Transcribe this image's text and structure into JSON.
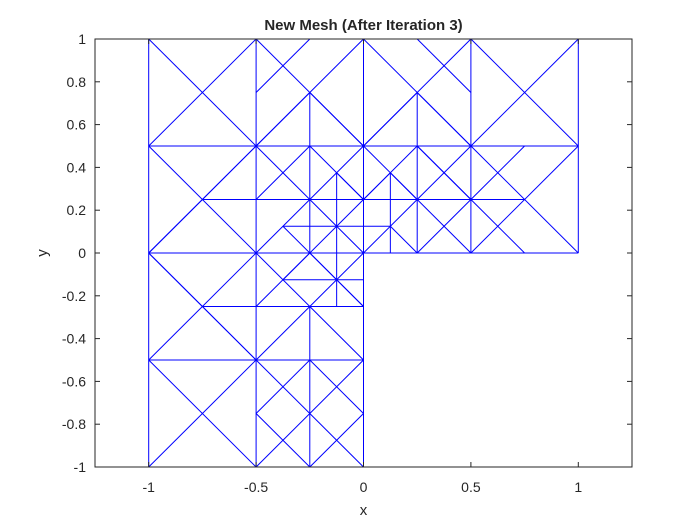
{
  "chart_data": {
    "type": "line",
    "title": "New Mesh (After Iteration 3)",
    "xlabel": "x",
    "ylabel": "y",
    "xlim": [
      -1.25,
      1.25
    ],
    "ylim": [
      -1,
      1
    ],
    "xticks": [
      -1,
      -0.5,
      0,
      0.5,
      1
    ],
    "xtick_labels": [
      "-1",
      "-0.5",
      "0",
      "0.5",
      "1"
    ],
    "yticks": [
      -1,
      -0.8,
      -0.6,
      -0.4,
      -0.2,
      0,
      0.2,
      0.4,
      0.6,
      0.8,
      1
    ],
    "ytick_labels": [
      "-1",
      "-0.8",
      "-0.6",
      "-0.4",
      "-0.2",
      "0",
      "0.2",
      "0.4",
      "0.6",
      "0.8",
      "1"
    ],
    "grid": false,
    "box": true,
    "line_color": "#0000ff",
    "axis_color": "#262626",
    "segments": [
      [
        [
          -1,
          -1
        ],
        [
          -1,
          1
        ]
      ],
      [
        [
          -1,
          -1
        ],
        [
          0,
          -1
        ]
      ],
      [
        [
          0,
          -1
        ],
        [
          0,
          0
        ]
      ],
      [
        [
          0,
          0
        ],
        [
          1,
          0
        ]
      ],
      [
        [
          1,
          0
        ],
        [
          1,
          1
        ]
      ],
      [
        [
          -1,
          1
        ],
        [
          1,
          1
        ]
      ],
      [
        [
          -0.5,
          -1
        ],
        [
          -0.5,
          1
        ]
      ],
      [
        [
          0.5,
          0
        ],
        [
          0.5,
          1
        ]
      ],
      [
        [
          -1,
          -0.5
        ],
        [
          0,
          -0.5
        ]
      ],
      [
        [
          -1,
          0
        ],
        [
          0,
          0
        ]
      ],
      [
        [
          -1,
          0.5
        ],
        [
          1,
          0.5
        ]
      ],
      [
        [
          0,
          0
        ],
        [
          0,
          1
        ]
      ],
      [
        [
          -1,
          -1
        ],
        [
          -0.5,
          -0.5
        ]
      ],
      [
        [
          -0.5,
          -1
        ],
        [
          -1,
          -0.5
        ]
      ],
      [
        [
          -0.5,
          -1
        ],
        [
          0,
          -0.5
        ]
      ],
      [
        [
          0,
          -1
        ],
        [
          -0.5,
          -0.5
        ]
      ],
      [
        [
          -1,
          -0.5
        ],
        [
          -0.5,
          0
        ]
      ],
      [
        [
          -0.5,
          -0.5
        ],
        [
          -1,
          0
        ]
      ],
      [
        [
          -1,
          0
        ],
        [
          -0.5,
          0.5
        ]
      ],
      [
        [
          -0.5,
          0
        ],
        [
          -1,
          0.5
        ]
      ],
      [
        [
          -1,
          0.5
        ],
        [
          -0.5,
          1
        ]
      ],
      [
        [
          -1,
          1
        ],
        [
          -0.5,
          0.5
        ]
      ],
      [
        [
          -0.5,
          1
        ],
        [
          0,
          0.5
        ]
      ],
      [
        [
          -0.5,
          0.5
        ],
        [
          0,
          1
        ]
      ],
      [
        [
          0,
          1
        ],
        [
          0.5,
          0.5
        ]
      ],
      [
        [
          0,
          0.5
        ],
        [
          0.5,
          1
        ]
      ],
      [
        [
          0.5,
          1
        ],
        [
          1,
          0.5
        ]
      ],
      [
        [
          0.5,
          0.5
        ],
        [
          1,
          1
        ]
      ],
      [
        [
          0.5,
          0
        ],
        [
          1,
          0.5
        ]
      ],
      [
        [
          0.5,
          0.5
        ],
        [
          1,
          0
        ]
      ],
      [
        [
          -0.25,
          -1
        ],
        [
          -0.25,
          -0.25
        ]
      ],
      [
        [
          -0.25,
          0
        ],
        [
          -0.25,
          0.75
        ]
      ],
      [
        [
          0.25,
          0
        ],
        [
          0.25,
          0.75
        ]
      ],
      [
        [
          -0.5,
          -0.25
        ],
        [
          0,
          -0.25
        ]
      ],
      [
        [
          -0.75,
          0.25
        ],
        [
          0.75,
          0.25
        ]
      ],
      [
        [
          -0.5,
          -0.75
        ],
        [
          -0.25,
          -1
        ]
      ],
      [
        [
          -0.25,
          -1
        ],
        [
          0,
          -0.75
        ]
      ],
      [
        [
          0,
          -0.75
        ],
        [
          -0.25,
          -0.5
        ]
      ],
      [
        [
          -0.25,
          -0.5
        ],
        [
          -0.5,
          -0.75
        ]
      ],
      [
        [
          -0.5,
          0.75
        ],
        [
          -0.25,
          1
        ]
      ],
      [
        [
          0.25,
          1
        ],
        [
          0.5,
          0.75
        ]
      ],
      [
        [
          -0.5,
          0.5
        ],
        [
          -0.25,
          0.75
        ]
      ],
      [
        [
          -0.25,
          0.75
        ],
        [
          0,
          0.5
        ]
      ],
      [
        [
          0,
          0.5
        ],
        [
          0.25,
          0.75
        ]
      ],
      [
        [
          0.25,
          0.75
        ],
        [
          0.5,
          0.5
        ]
      ],
      [
        [
          -1,
          0
        ],
        [
          -0.75,
          -0.25
        ]
      ],
      [
        [
          -0.75,
          -0.25
        ],
        [
          -0.5,
          -0.5
        ]
      ],
      [
        [
          -1,
          0
        ],
        [
          -0.75,
          0.25
        ]
      ],
      [
        [
          -0.75,
          0.25
        ],
        [
          -0.5,
          0.5
        ]
      ],
      [
        [
          -0.75,
          -0.25
        ],
        [
          -0.5,
          -0.25
        ]
      ],
      [
        [
          0.25,
          0
        ],
        [
          0.5,
          0.25
        ]
      ],
      [
        [
          0.5,
          0.25
        ],
        [
          0.75,
          0
        ]
      ],
      [
        [
          0.5,
          0.25
        ],
        [
          0.75,
          0.5
        ]
      ],
      [
        [
          0.25,
          0.5
        ],
        [
          0.5,
          0.25
        ]
      ],
      [
        [
          -0.5,
          0
        ],
        [
          -0.25,
          -0.25
        ]
      ],
      [
        [
          -0.25,
          -0.25
        ],
        [
          0,
          -0.5
        ]
      ],
      [
        [
          -0.5,
          -0.5
        ],
        [
          -0.25,
          -0.25
        ]
      ],
      [
        [
          -0.25,
          -0.25
        ],
        [
          0,
          0
        ]
      ],
      [
        [
          -0.5,
          0
        ],
        [
          -0.25,
          0.25
        ]
      ],
      [
        [
          -0.25,
          0.25
        ],
        [
          0,
          0.5
        ]
      ],
      [
        [
          -0.5,
          0.5
        ],
        [
          -0.25,
          0.25
        ]
      ],
      [
        [
          -0.25,
          0.25
        ],
        [
          0,
          0
        ]
      ],
      [
        [
          0,
          0
        ],
        [
          0.25,
          0.25
        ]
      ],
      [
        [
          0.25,
          0.25
        ],
        [
          0.5,
          0.5
        ]
      ],
      [
        [
          0,
          0.5
        ],
        [
          0.25,
          0.25
        ]
      ],
      [
        [
          0.25,
          0.25
        ],
        [
          0.5,
          0
        ]
      ],
      [
        [
          -0.5,
          -0.25
        ],
        [
          -0.25,
          0
        ]
      ],
      [
        [
          -0.25,
          0
        ],
        [
          0,
          -0.25
        ]
      ],
      [
        [
          -0.5,
          0.25
        ],
        [
          -0.25,
          0.5
        ]
      ],
      [
        [
          -0.25,
          0.5
        ],
        [
          0,
          0.25
        ]
      ],
      [
        [
          0,
          0.25
        ],
        [
          0.25,
          0.5
        ]
      ],
      [
        [
          0.25,
          0.5
        ],
        [
          0.5,
          0.25
        ]
      ],
      [
        [
          -0.125,
          -0.25
        ],
        [
          -0.125,
          0.375
        ]
      ],
      [
        [
          0.125,
          0
        ],
        [
          0.125,
          0.375
        ]
      ],
      [
        [
          -0.375,
          0.125
        ],
        [
          0.125,
          0.125
        ]
      ],
      [
        [
          -0.375,
          -0.125
        ],
        [
          0,
          -0.125
        ]
      ],
      [
        [
          -0.375,
          0.125
        ],
        [
          -0.125,
          -0.125
        ]
      ],
      [
        [
          -0.125,
          -0.125
        ],
        [
          0,
          -0.25
        ]
      ],
      [
        [
          -0.375,
          -0.125
        ],
        [
          -0.125,
          0.125
        ]
      ],
      [
        [
          -0.125,
          0.125
        ],
        [
          0,
          0.25
        ]
      ],
      [
        [
          0,
          0.25
        ],
        [
          0.125,
          0.375
        ]
      ],
      [
        [
          0.125,
          0.375
        ],
        [
          0.25,
          0.25
        ]
      ],
      [
        [
          -0.125,
          0.375
        ],
        [
          0,
          0.25
        ]
      ],
      [
        [
          0.125,
          0.125
        ],
        [
          0.25,
          0
        ]
      ]
    ]
  }
}
